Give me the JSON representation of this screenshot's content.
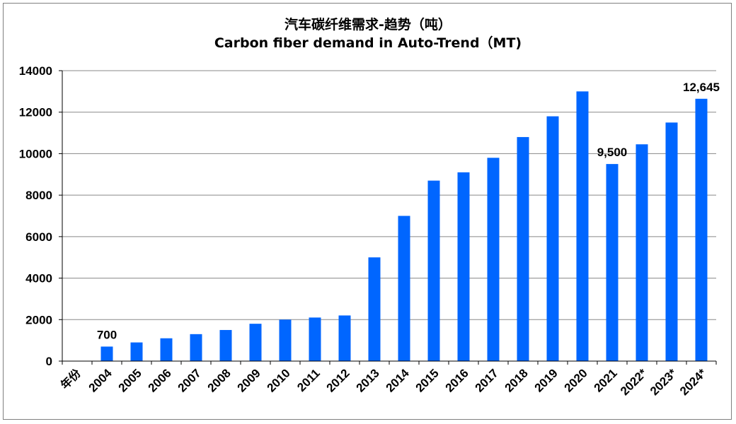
{
  "chart_data": {
    "type": "bar",
    "title": "汽车碳纤维需求-趋势（吨）",
    "subtitle": "Carbon fiber demand in Auto-Trend（MT)",
    "xlabel": "年份",
    "ylabel": "",
    "categories": [
      "2004",
      "2005",
      "2006",
      "2007",
      "2008",
      "2009",
      "2010",
      "2011",
      "2012",
      "2013",
      "2014",
      "2015",
      "2016",
      "2017",
      "2018",
      "2019",
      "2020",
      "2021",
      "2022*",
      "2023*",
      "2024*"
    ],
    "values": [
      700,
      900,
      1100,
      1300,
      1500,
      1800,
      2000,
      2100,
      2200,
      5000,
      7000,
      8700,
      9100,
      9800,
      10800,
      11800,
      13000,
      9500,
      10450,
      11500,
      12645
    ],
    "ylim": [
      0,
      14000
    ],
    "yticks": [
      0,
      2000,
      4000,
      6000,
      8000,
      10000,
      12000,
      14000
    ],
    "ytick_labels": [
      "0",
      "2000",
      "4000",
      "6000",
      "8000",
      "10000",
      "12000",
      "14000"
    ],
    "grid": true,
    "legend": "none",
    "bar_color": "#0066FF",
    "data_labels": [
      {
        "index": 0,
        "text": "700"
      },
      {
        "index": 17,
        "text": "9,500"
      },
      {
        "index": 20,
        "text": "12,645"
      }
    ]
  }
}
